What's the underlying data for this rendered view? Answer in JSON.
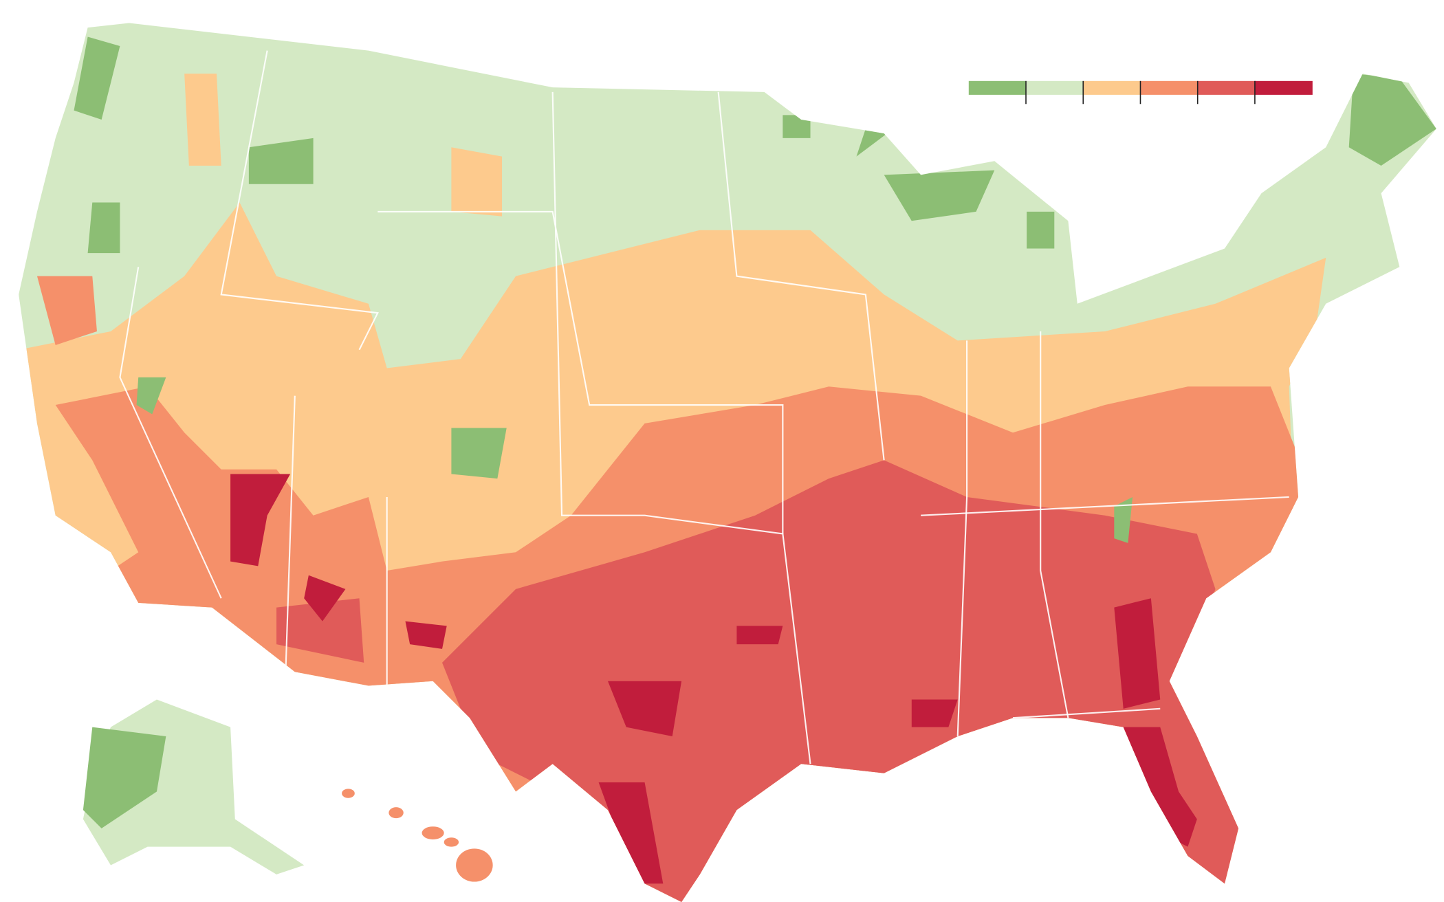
{
  "legend": {
    "colors": [
      "#8cbe74",
      "#d4e9c4",
      "#fdca8d",
      "#f5906a",
      "#e05b59",
      "#c11d3c"
    ]
  }
}
